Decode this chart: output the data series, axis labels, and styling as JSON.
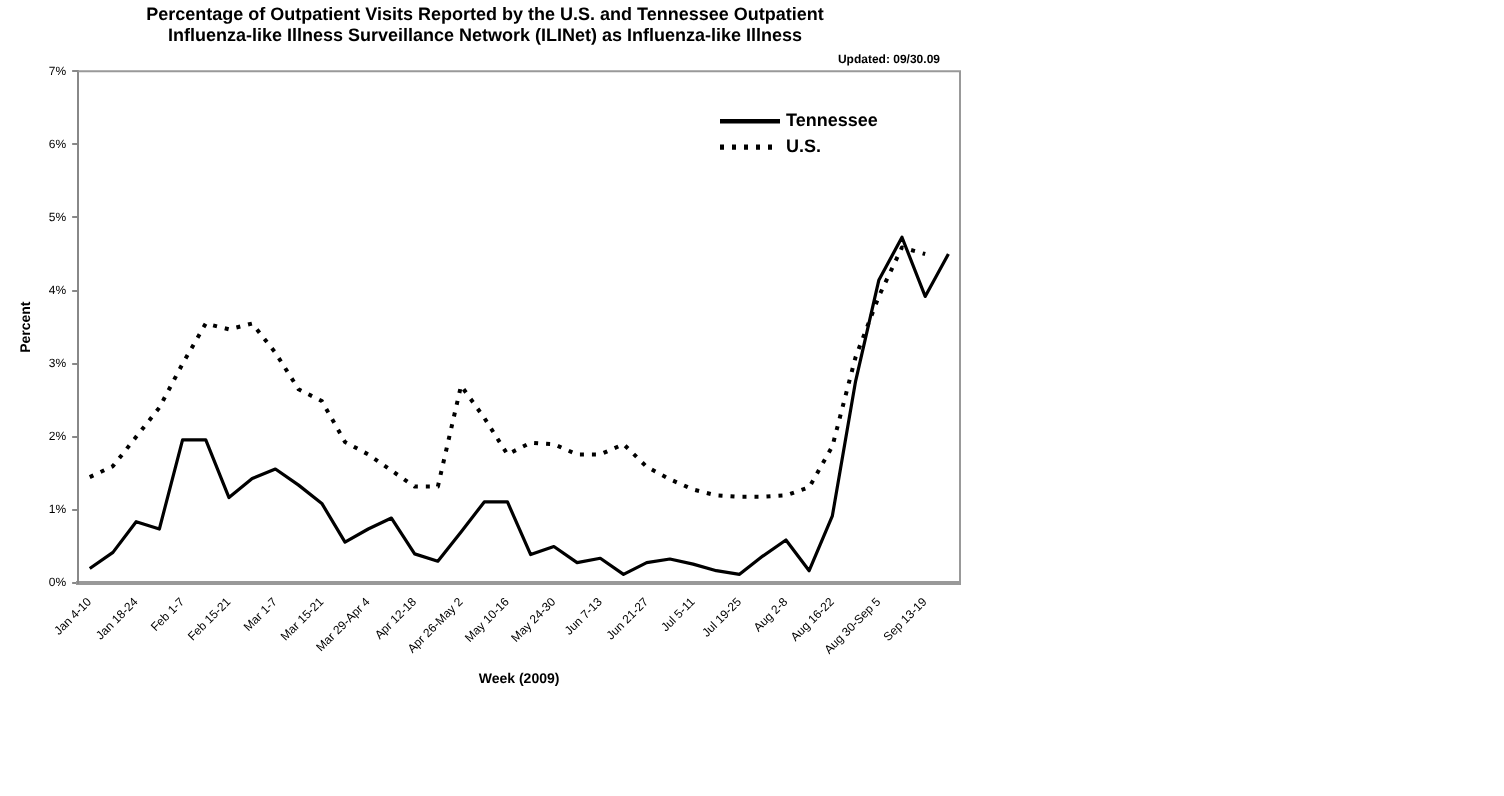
{
  "chart_data": {
    "type": "line",
    "title": [
      "Percentage of Outpatient Visits Reported by the U.S. and Tennessee Outpatient",
      "Influenza-like Illness Surveillance Network (ILINet) as Influenza-like Illness"
    ],
    "subtitle": "Updated: 09/30.09",
    "xlabel": "Week (2009)",
    "ylabel": "Percent",
    "categories": [
      "Jan 4-10",
      null,
      "Jan 18-24",
      null,
      "Feb 1-7",
      null,
      "Feb 15-21",
      null,
      "Mar 1-7",
      null,
      "Mar 15-21",
      null,
      "Mar 29-Apr 4",
      null,
      "Apr 12-18",
      null,
      "Apr 26-May 2",
      null,
      "May 10-16",
      null,
      "May 24-30",
      null,
      "Jun 7-13",
      null,
      "Jun 21-27",
      null,
      "Jul 5-11",
      null,
      "Jul 19-25",
      null,
      "Aug 2-8",
      null,
      "Aug 16-22",
      null,
      "Aug 30-Sep 5",
      null,
      "Sep 13-19",
      null
    ],
    "series": [
      {
        "name": "Tennessee",
        "color": "#000000",
        "line_style": "solid",
        "values": [
          0.2,
          0.42,
          0.84,
          0.74,
          1.96,
          1.96,
          1.17,
          1.43,
          1.56,
          1.34,
          1.09,
          0.56,
          0.74,
          0.89,
          0.4,
          0.3,
          0.7,
          1.11,
          1.11,
          0.39,
          0.5,
          0.28,
          0.34,
          0.12,
          0.28,
          0.33,
          0.26,
          0.17,
          0.12,
          0.37,
          0.59,
          0.17,
          0.92,
          2.76,
          4.14,
          4.73,
          3.92,
          4.5
        ]
      },
      {
        "name": "U.S.",
        "color": "#000000",
        "line_style": "dotted",
        "values": [
          1.45,
          1.6,
          2.0,
          2.4,
          3.0,
          3.55,
          3.47,
          3.55,
          3.15,
          2.65,
          2.49,
          1.93,
          1.76,
          1.54,
          1.32,
          1.32,
          2.7,
          2.26,
          1.76,
          1.92,
          1.9,
          1.76,
          1.76,
          1.9,
          1.59,
          1.42,
          1.28,
          1.2,
          1.18,
          1.18,
          1.2,
          1.31,
          1.87,
          3.09,
          3.92,
          4.59,
          4.5,
          null
        ]
      }
    ],
    "ylim": [
      0,
      7
    ],
    "yticks": [
      {
        "value": 0,
        "label": "0%"
      },
      {
        "value": 1,
        "label": "1%"
      },
      {
        "value": 2,
        "label": "2%"
      },
      {
        "value": 3,
        "label": "3%"
      },
      {
        "value": 4,
        "label": "4%"
      },
      {
        "value": 5,
        "label": "5%"
      },
      {
        "value": 6,
        "label": "6%"
      },
      {
        "value": 7,
        "label": "7%"
      }
    ],
    "grid": false,
    "legend": "top right",
    "marker": "none"
  }
}
